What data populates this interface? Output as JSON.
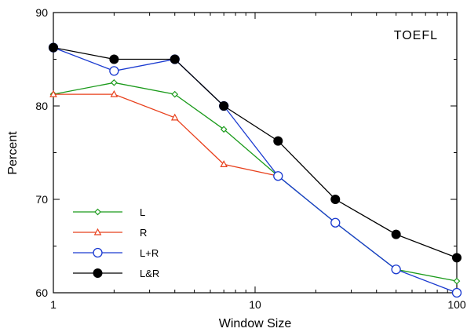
{
  "chart_data": {
    "type": "line",
    "title": "",
    "annotation": "TOEFL",
    "xlabel": "Window Size",
    "ylabel": "Percent",
    "x_scale": "log",
    "xlim": [
      1,
      100
    ],
    "ylim": [
      60,
      90
    ],
    "x_ticks": [
      1,
      10,
      100
    ],
    "x_tick_labels": [
      "1",
      "10",
      "100"
    ],
    "y_ticks": [
      60,
      70,
      80,
      90
    ],
    "y_tick_labels": [
      "60",
      "70",
      "80",
      "90"
    ],
    "grid": false,
    "legend_position": "bottom-left",
    "series": [
      {
        "name": "L",
        "color": "#1a9a1a",
        "marker": "diamond-open",
        "x": [
          1,
          2,
          4,
          7,
          13,
          25,
          50,
          100
        ],
        "y": [
          81.25,
          82.5,
          81.25,
          77.5,
          72.5,
          67.5,
          62.5,
          61.25
        ]
      },
      {
        "name": "R",
        "color": "#e8401c",
        "marker": "triangle-open",
        "x": [
          1,
          2,
          4,
          7,
          13
        ],
        "y": [
          81.25,
          81.25,
          78.75,
          73.75,
          72.5
        ]
      },
      {
        "name": "L+R",
        "color": "#1a3ad0",
        "marker": "circle-open",
        "x": [
          1,
          2,
          4,
          7,
          13,
          25,
          50,
          100
        ],
        "y": [
          86.25,
          83.75,
          85.0,
          80.0,
          72.5,
          67.5,
          62.5,
          60.0
        ]
      },
      {
        "name": "L&R",
        "color": "#000000",
        "marker": "circle-filled",
        "x": [
          1,
          2,
          4,
          7,
          13,
          25,
          50,
          100
        ],
        "y": [
          86.25,
          85.0,
          85.0,
          80.0,
          76.25,
          70.0,
          66.25,
          63.75
        ]
      }
    ]
  }
}
